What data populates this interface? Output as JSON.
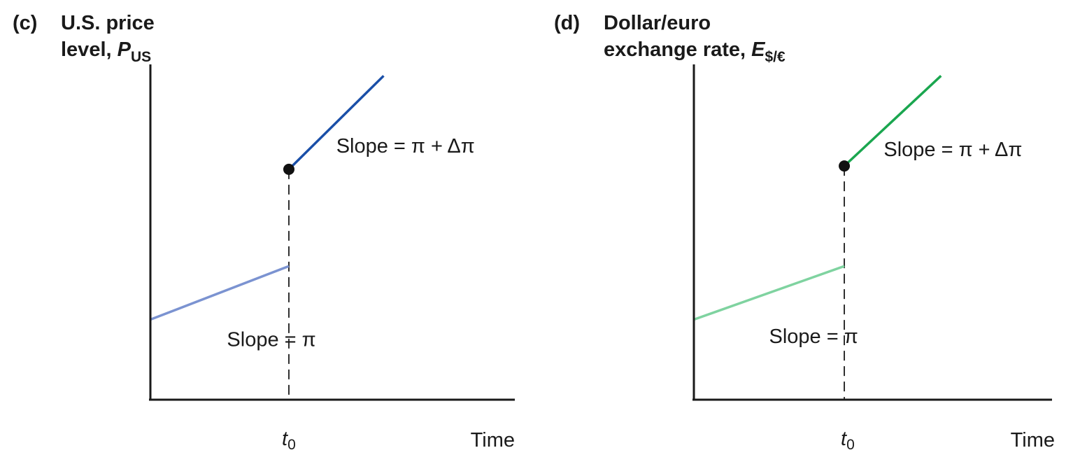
{
  "chart_data": [
    {
      "type": "line",
      "panel_tag": "(c)",
      "ylabel": {
        "line1": "U.S. price",
        "line2_text": "level, ",
        "symbol": "P",
        "subscript": "US"
      },
      "xlabel": "Time",
      "x_tick": {
        "symbol": "t",
        "subscript": "0",
        "position": 0.38
      },
      "xlim": [
        0,
        1
      ],
      "ylim": [
        0,
        1
      ],
      "series": [
        {
          "segment": "before",
          "x": [
            0,
            0.38
          ],
          "y": [
            0.24,
            0.4
          ],
          "color": "#7b93d1"
        },
        {
          "segment": "after",
          "x": [
            0.38,
            0.64
          ],
          "y": [
            0.69,
            0.97
          ],
          "color": "#1a4fa8"
        }
      ],
      "jump_point": {
        "x": 0.38,
        "y": 0.69
      },
      "annotations": [
        {
          "text": "Slope = π + Δπ",
          "x": 0.51,
          "y": 0.74
        },
        {
          "text": "Slope = π",
          "x": 0.21,
          "y": 0.16
        }
      ]
    },
    {
      "type": "line",
      "panel_tag": "(d)",
      "ylabel": {
        "line1": "Dollar/euro",
        "line2_text": "exchange rate, ",
        "symbol": "E",
        "subscript": "$/€"
      },
      "xlabel": "Time",
      "x_tick": {
        "symbol": "t",
        "subscript": "0",
        "position": 0.42
      },
      "xlim": [
        0,
        1
      ],
      "ylim": [
        0,
        1
      ],
      "series": [
        {
          "segment": "before",
          "x": [
            0,
            0.42
          ],
          "y": [
            0.24,
            0.4
          ],
          "color": "#7fd3a0"
        },
        {
          "segment": "after",
          "x": [
            0.42,
            0.69
          ],
          "y": [
            0.7,
            0.97
          ],
          "color": "#1aa64f"
        }
      ],
      "jump_point": {
        "x": 0.42,
        "y": 0.7
      },
      "annotations": [
        {
          "text": "Slope = π + Δπ",
          "x": 0.53,
          "y": 0.73
        },
        {
          "text": "Slope = π",
          "x": 0.21,
          "y": 0.17
        }
      ]
    }
  ]
}
